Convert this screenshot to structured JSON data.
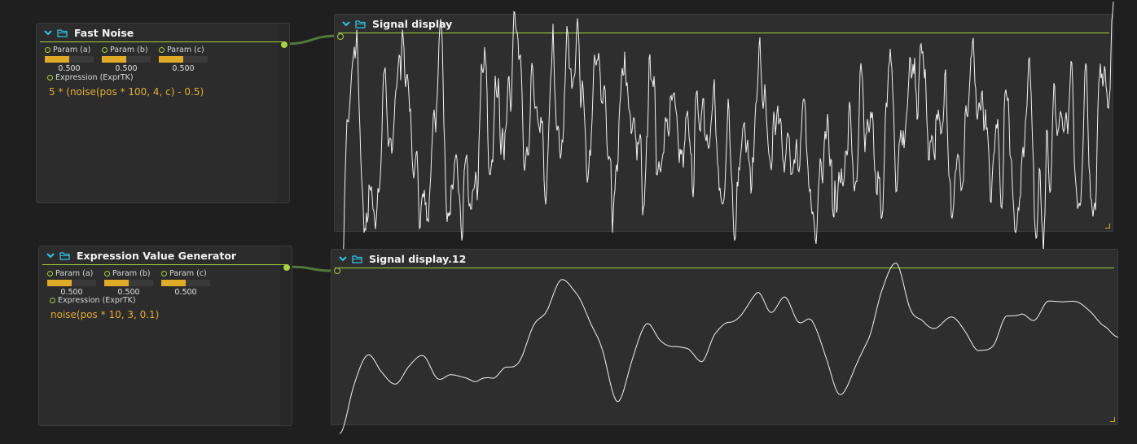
{
  "nodes": [
    {
      "title": "Fast Noise",
      "params": [
        {
          "label": "Param (a)",
          "value": "0.500",
          "fraction": 0.5
        },
        {
          "label": "Param (b)",
          "value": "0.500",
          "fraction": 0.5
        },
        {
          "label": "Param (c)",
          "value": "0.500",
          "fraction": 0.5
        }
      ],
      "expression_label": "Expression (ExprTK)",
      "expression": "5 * (noise(pos * 100, 4, c) - 0.5)"
    },
    {
      "title": "Expression Value Generator",
      "params": [
        {
          "label": "Param (a)",
          "value": "0.500",
          "fraction": 0.5
        },
        {
          "label": "Param (b)",
          "value": "0.500",
          "fraction": 0.5
        },
        {
          "label": "Param (c)",
          "value": "0.500",
          "fraction": 0.5
        }
      ],
      "expression_label": "Expression (ExprTK)",
      "expression": "noise(pos * 10, 3, 0.1)"
    }
  ],
  "displays": [
    {
      "title": "Signal display"
    },
    {
      "title": "Signal display.12"
    }
  ],
  "colors": {
    "accent": "#a6d23a",
    "slider": "#e0ac28",
    "icon": "#2ec4e6",
    "wire": "#4f7a3a"
  }
}
